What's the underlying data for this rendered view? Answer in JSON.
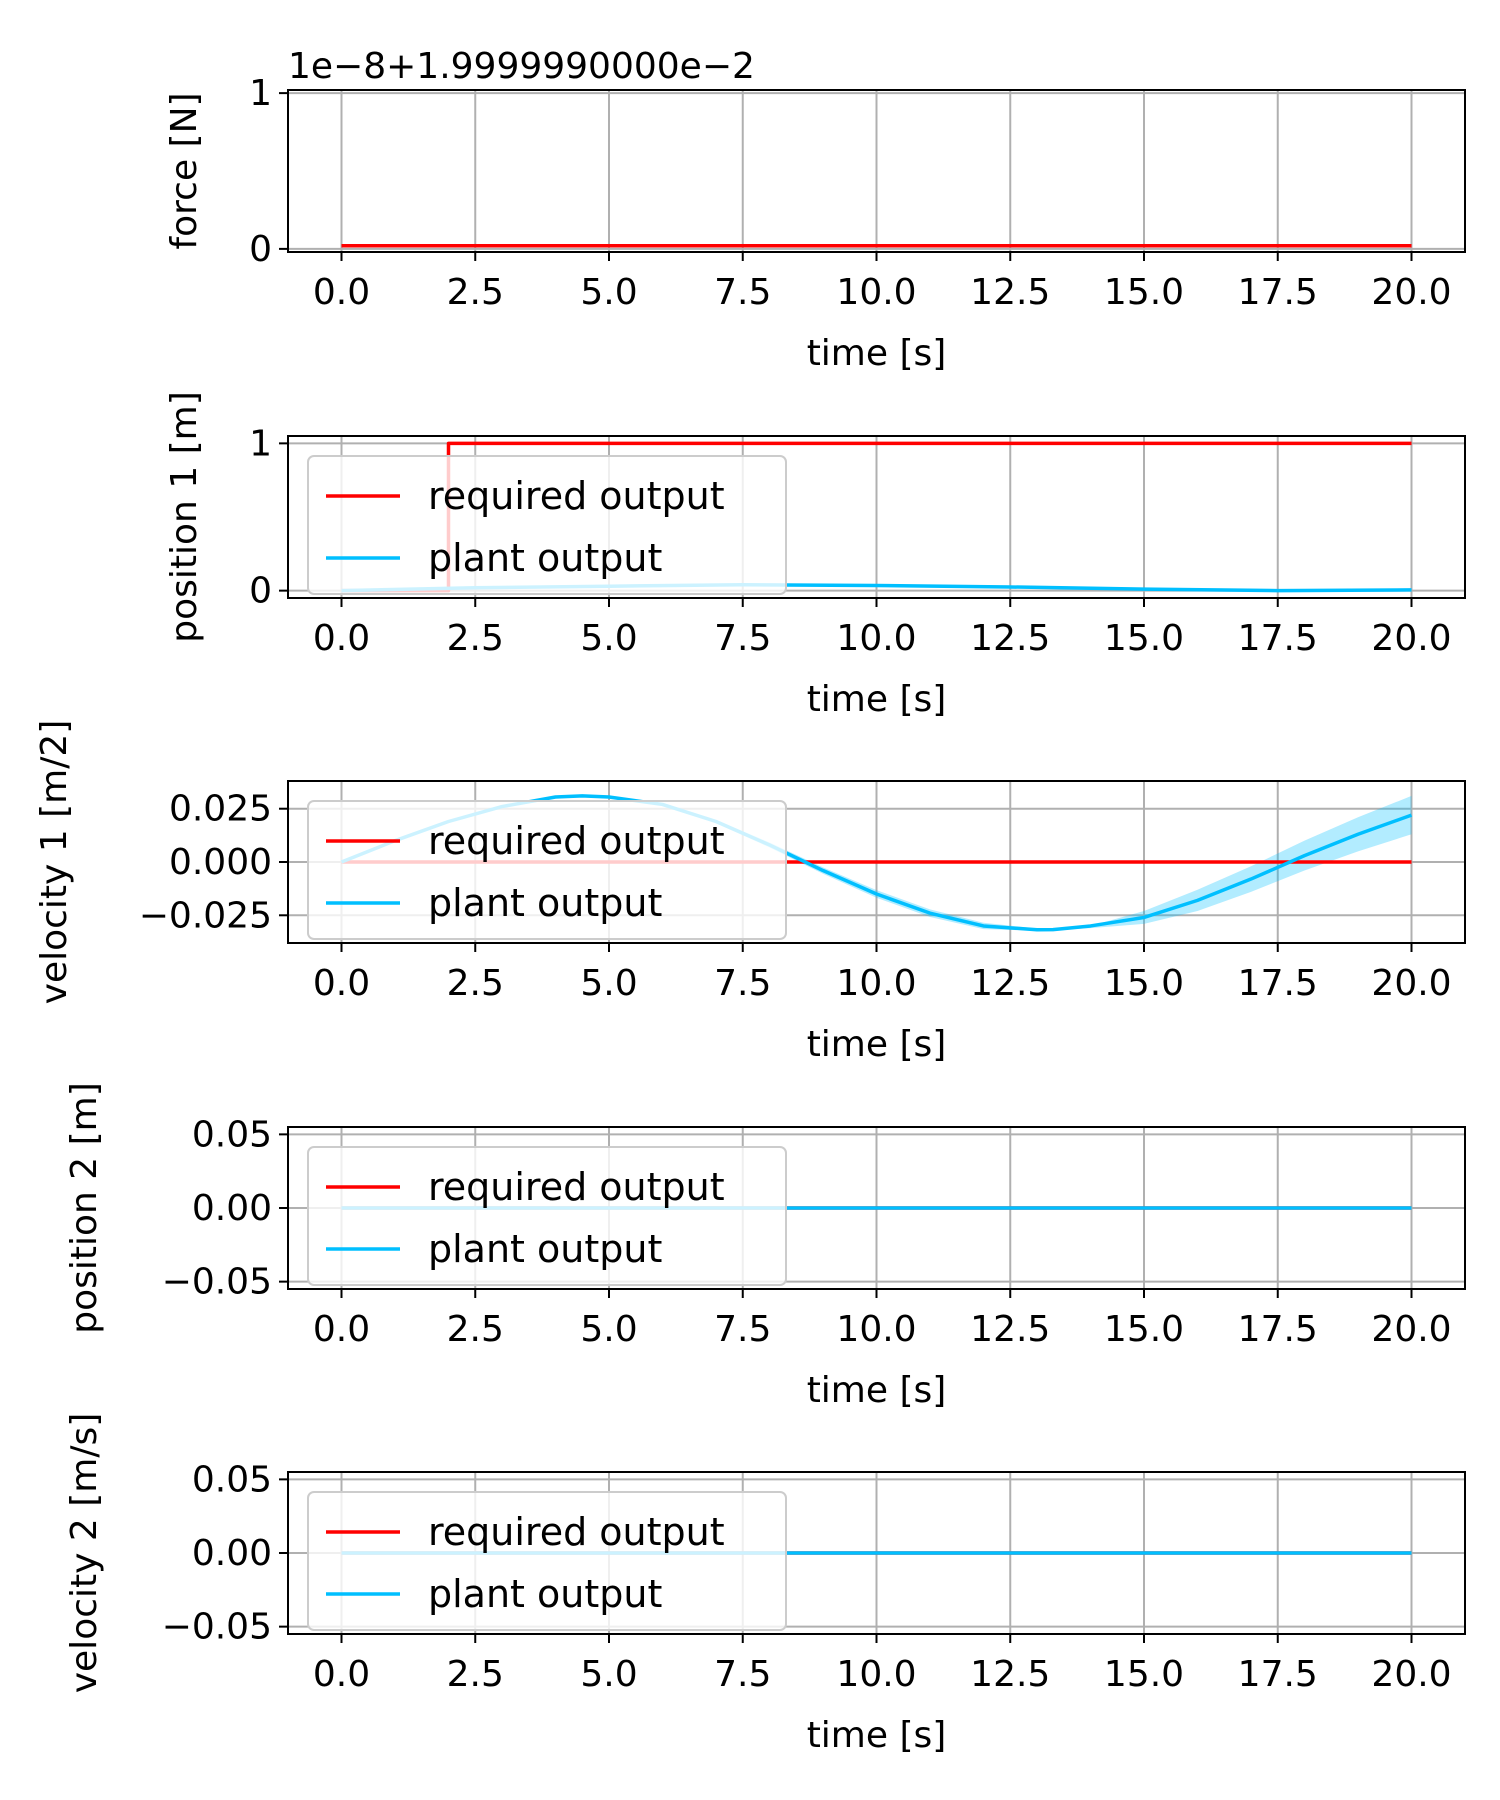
{
  "chart_data": [
    {
      "type": "line",
      "xlabel": "time [s]",
      "ylabel": "force [N]",
      "offset_text": "1e−8+1.9999990000e−2",
      "xlim": [
        -1,
        21
      ],
      "ylim": [
        -0.02,
        1.02
      ],
      "xticks": [
        0,
        2.5,
        5,
        7.5,
        10,
        12.5,
        15,
        17.5,
        20
      ],
      "xtick_labels": [
        "0.0",
        "2.5",
        "5.0",
        "7.5",
        "10.0",
        "12.5",
        "15.0",
        "17.5",
        "20.0"
      ],
      "yticks": [
        0,
        1
      ],
      "ytick_labels": [
        "0",
        "1"
      ],
      "grid": true,
      "legend": null,
      "series": [
        {
          "color": "#ff0000",
          "x": [
            0,
            20
          ],
          "y": [
            0.02,
            0.02
          ]
        }
      ]
    },
    {
      "type": "line",
      "xlabel": "time [s]",
      "ylabel": "position 1 [m]",
      "xlim": [
        -1,
        21
      ],
      "ylim": [
        -0.05,
        1.05
      ],
      "xticks": [
        0,
        2.5,
        5,
        7.5,
        10,
        12.5,
        15,
        17.5,
        20
      ],
      "xtick_labels": [
        "0.0",
        "2.5",
        "5.0",
        "7.5",
        "10.0",
        "12.5",
        "15.0",
        "17.5",
        "20.0"
      ],
      "yticks": [
        0,
        1
      ],
      "ytick_labels": [
        "0",
        "1"
      ],
      "grid": true,
      "legend": "upper-left",
      "series": [
        {
          "name": "required output",
          "color": "#ff0000",
          "x": [
            0,
            2,
            2,
            20
          ],
          "y": [
            0,
            0,
            1,
            1
          ]
        },
        {
          "name": "plant output",
          "color": "#00bfff",
          "x": [
            0,
            2.5,
            5,
            7.5,
            10,
            12.5,
            15,
            17.5,
            20
          ],
          "y": [
            0,
            0.02,
            0.03,
            0.04,
            0.035,
            0.025,
            0.01,
            0.0,
            0.005
          ]
        }
      ]
    },
    {
      "type": "line",
      "xlabel": "time [s]",
      "ylabel": "velocity 1 [m/2]",
      "xlim": [
        -1,
        21
      ],
      "ylim": [
        -0.038,
        0.038
      ],
      "xticks": [
        0,
        2.5,
        5,
        7.5,
        10,
        12.5,
        15,
        17.5,
        20
      ],
      "xtick_labels": [
        "0.0",
        "2.5",
        "5.0",
        "7.5",
        "10.0",
        "12.5",
        "15.0",
        "17.5",
        "20.0"
      ],
      "yticks": [
        0.025,
        0,
        -0.025
      ],
      "ytick_labels": [
        "0.025",
        "0.000",
        "−0.025"
      ],
      "grid": true,
      "legend": "upper-left",
      "series": [
        {
          "name": "required output",
          "color": "#ff0000",
          "x": [
            0,
            20
          ],
          "y": [
            0,
            0
          ]
        },
        {
          "name": "plant output",
          "color": "#00bfff",
          "x": [
            0,
            1,
            2,
            3,
            4,
            4.5,
            5,
            6,
            7,
            8,
            9,
            10,
            11,
            12,
            13,
            13.3,
            14,
            15,
            16,
            17,
            18,
            19,
            20
          ],
          "y": [
            0,
            0.01,
            0.019,
            0.026,
            0.0305,
            0.031,
            0.0305,
            0.027,
            0.019,
            0.008,
            -0.004,
            -0.015,
            -0.024,
            -0.03,
            -0.0318,
            -0.0317,
            -0.03,
            -0.026,
            -0.018,
            -0.008,
            0.003,
            0.013,
            0.022
          ],
          "band_upper": [
            0,
            0.01,
            0.019,
            0.026,
            0.0307,
            0.0312,
            0.0308,
            0.0275,
            0.0198,
            0.0092,
            -0.0025,
            -0.0132,
            -0.0222,
            -0.0285,
            -0.0312,
            -0.0315,
            -0.03,
            -0.023,
            -0.013,
            -0.002,
            0.01,
            0.021,
            0.031
          ],
          "band_lower": [
            0,
            0.01,
            0.019,
            0.026,
            0.0303,
            0.0308,
            0.0302,
            0.0265,
            0.0182,
            0.0068,
            -0.0055,
            -0.0168,
            -0.0258,
            -0.0315,
            -0.0322,
            -0.032,
            -0.031,
            -0.029,
            -0.023,
            -0.014,
            -0.004,
            0.005,
            0.013
          ]
        }
      ]
    },
    {
      "type": "line",
      "xlabel": "time [s]",
      "ylabel": "position 2 [m]",
      "xlim": [
        -1,
        21
      ],
      "ylim": [
        -0.055,
        0.055
      ],
      "xticks": [
        0,
        2.5,
        5,
        7.5,
        10,
        12.5,
        15,
        17.5,
        20
      ],
      "xtick_labels": [
        "0.0",
        "2.5",
        "5.0",
        "7.5",
        "10.0",
        "12.5",
        "15.0",
        "17.5",
        "20.0"
      ],
      "yticks": [
        0.05,
        0,
        -0.05
      ],
      "ytick_labels": [
        "0.05",
        "0.00",
        "−0.05"
      ],
      "grid": true,
      "legend": "upper-left",
      "series": [
        {
          "name": "required output",
          "color": "#ff0000",
          "x": [
            0,
            20
          ],
          "y": [
            0,
            0
          ]
        },
        {
          "name": "plant output",
          "color": "#00bfff",
          "x": [
            0,
            20
          ],
          "y": [
            0,
            0
          ]
        }
      ]
    },
    {
      "type": "line",
      "xlabel": "time [s]",
      "ylabel": "velocity 2 [m/s]",
      "xlim": [
        -1,
        21
      ],
      "ylim": [
        -0.055,
        0.055
      ],
      "xticks": [
        0,
        2.5,
        5,
        7.5,
        10,
        12.5,
        15,
        17.5,
        20
      ],
      "xtick_labels": [
        "0.0",
        "2.5",
        "5.0",
        "7.5",
        "10.0",
        "12.5",
        "15.0",
        "17.5",
        "20.0"
      ],
      "yticks": [
        0.05,
        0,
        -0.05
      ],
      "ytick_labels": [
        "0.05",
        "0.00",
        "−0.05"
      ],
      "grid": true,
      "legend": "upper-left",
      "series": [
        {
          "name": "required output",
          "color": "#ff0000",
          "x": [
            0,
            20
          ],
          "y": [
            0,
            0
          ]
        },
        {
          "name": "plant output",
          "color": "#00bfff",
          "x": [
            0,
            20
          ],
          "y": [
            0,
            0
          ]
        }
      ]
    }
  ]
}
